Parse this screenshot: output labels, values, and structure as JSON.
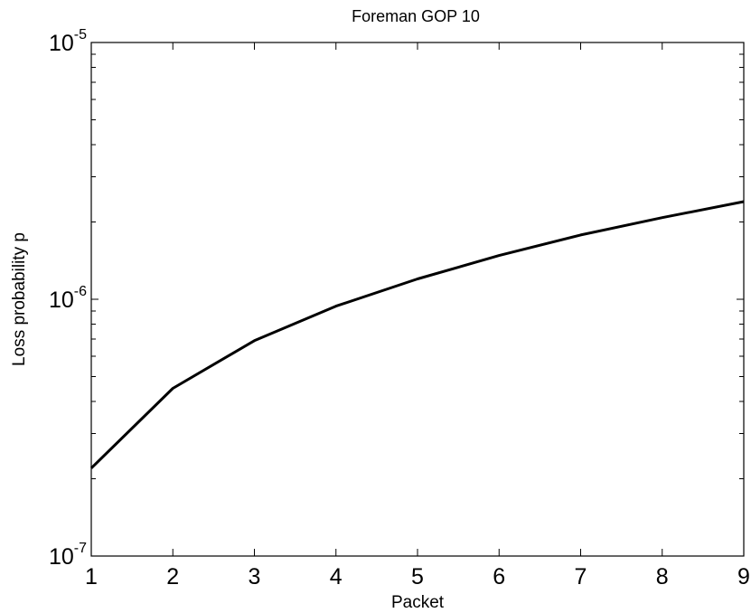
{
  "chart_data": {
    "type": "line",
    "title": "Foreman GOP 10",
    "xlabel": "Packet",
    "ylabel": "Loss probability p",
    "xlim": [
      1,
      9
    ],
    "ylim": [
      1e-07,
      1e-05
    ],
    "yscale": "log",
    "grid": false,
    "x_ticks": [
      "1",
      "2",
      "3",
      "4",
      "5",
      "6",
      "7",
      "8",
      "9"
    ],
    "y_ticks": [
      {
        "value": 1e-07,
        "base": "10",
        "exp": "-7"
      },
      {
        "value": 1e-06,
        "base": "10",
        "exp": "-6"
      },
      {
        "value": 1e-05,
        "base": "10",
        "exp": "-5"
      }
    ],
    "series": [
      {
        "x": [
          1,
          2,
          3,
          4,
          5,
          6,
          7,
          8,
          9
        ],
        "y": [
          2.2e-07,
          4.5e-07,
          6.9e-07,
          9.4e-07,
          1.2e-06,
          1.48e-06,
          1.78e-06,
          2.08e-06,
          2.4e-06
        ],
        "color": "#000000"
      }
    ]
  }
}
